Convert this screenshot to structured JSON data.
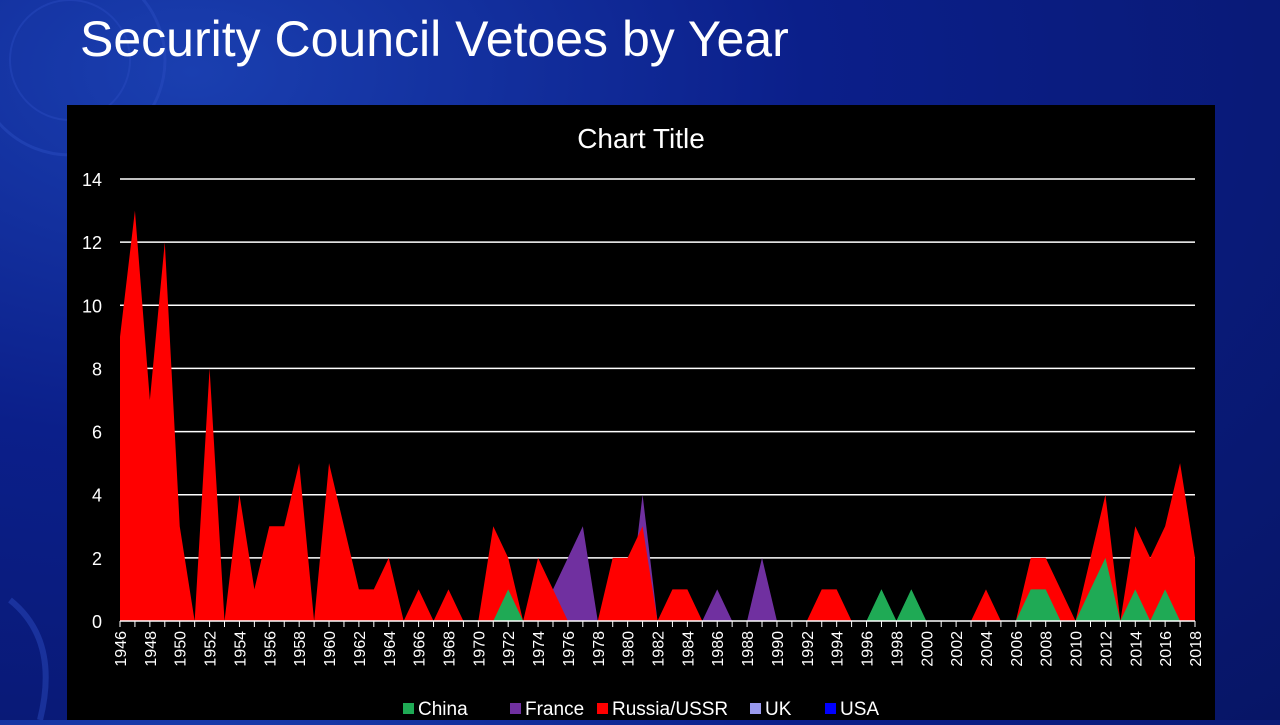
{
  "slide": {
    "title": "Security Council Vetoes by Year"
  },
  "chart_data": {
    "type": "area",
    "title": "Chart Title",
    "xlabel": "",
    "ylabel": "",
    "ylim": [
      0,
      14
    ],
    "yticks": [
      0,
      2,
      4,
      6,
      8,
      10,
      12,
      14
    ],
    "x": [
      1946,
      1947,
      1948,
      1949,
      1950,
      1951,
      1952,
      1953,
      1954,
      1955,
      1956,
      1957,
      1958,
      1959,
      1960,
      1961,
      1962,
      1963,
      1964,
      1965,
      1966,
      1967,
      1968,
      1969,
      1970,
      1971,
      1972,
      1973,
      1974,
      1975,
      1976,
      1977,
      1978,
      1979,
      1980,
      1981,
      1982,
      1983,
      1984,
      1985,
      1986,
      1987,
      1988,
      1989,
      1990,
      1991,
      1992,
      1993,
      1994,
      1995,
      1996,
      1997,
      1998,
      1999,
      2000,
      2001,
      2002,
      2003,
      2004,
      2005,
      2006,
      2007,
      2008,
      2009,
      2010,
      2011,
      2012,
      2013,
      2014,
      2015,
      2016,
      2017,
      2018
    ],
    "xticks": [
      1946,
      1948,
      1950,
      1952,
      1954,
      1956,
      1958,
      1960,
      1962,
      1964,
      1966,
      1968,
      1970,
      1972,
      1974,
      1976,
      1978,
      1980,
      1982,
      1984,
      1986,
      1988,
      1990,
      1992,
      1994,
      1996,
      1998,
      2000,
      2002,
      2004,
      2006,
      2008,
      2010,
      2012,
      2014,
      2016,
      2018
    ],
    "grid": true,
    "legend": "bottom",
    "series": [
      {
        "name": "China",
        "color": "#1faa55",
        "values": [
          0,
          0,
          0,
          0,
          0,
          0,
          0,
          0,
          0,
          0,
          0,
          0,
          0,
          0,
          0,
          0,
          0,
          0,
          0,
          0,
          0,
          0,
          0,
          0,
          0,
          0,
          1,
          0,
          0,
          0,
          0,
          0,
          0,
          0,
          0,
          0,
          0,
          0,
          0,
          0,
          0,
          0,
          0,
          0,
          0,
          0,
          0,
          0,
          0,
          0,
          0,
          1,
          0,
          1,
          0,
          0,
          0,
          0,
          0,
          0,
          0,
          1,
          1,
          0,
          0,
          1,
          2,
          0,
          1,
          0,
          1,
          0,
          0
        ]
      },
      {
        "name": "France",
        "color": "#7030a0",
        "values": [
          0,
          0,
          0,
          0,
          0,
          0,
          0,
          0,
          0,
          0,
          2,
          0,
          0,
          0,
          0,
          0,
          0,
          0,
          0,
          0,
          0,
          0,
          0,
          0,
          0,
          0,
          0,
          0,
          1,
          1,
          2,
          3,
          0,
          0,
          0,
          4,
          0,
          0,
          0,
          0,
          1,
          0,
          0,
          2,
          0,
          0,
          0,
          0,
          0,
          0,
          0,
          0,
          0,
          0,
          0,
          0,
          0,
          0,
          0,
          0,
          0,
          0,
          0,
          0,
          0,
          0,
          0,
          0,
          0,
          0,
          0,
          0,
          0
        ]
      },
      {
        "name": "Russia/USSR",
        "color": "#ff0000",
        "values": [
          9,
          13,
          7,
          12,
          3,
          0,
          8,
          0,
          4,
          1,
          3,
          3,
          5,
          0,
          5,
          3,
          1,
          1,
          2,
          0,
          1,
          0,
          1,
          0,
          0,
          3,
          2,
          0,
          2,
          1,
          0,
          0,
          0,
          2,
          2,
          3,
          0,
          1,
          1,
          0,
          0,
          0,
          0,
          0,
          0,
          0,
          0,
          1,
          1,
          0,
          0,
          0,
          0,
          0,
          0,
          0,
          0,
          0,
          1,
          0,
          0,
          2,
          2,
          1,
          0,
          2,
          4,
          0,
          3,
          2,
          3,
          5,
          2
        ]
      },
      {
        "name": "UK",
        "color": "#9999ee",
        "values": [
          0,
          0,
          0,
          0,
          0,
          0,
          0,
          0,
          0,
          0,
          0,
          0,
          0,
          0,
          0,
          0,
          0,
          0,
          0,
          0,
          0,
          0,
          0,
          0,
          0,
          0,
          0,
          0,
          0,
          0,
          0,
          0,
          0,
          0,
          0,
          0,
          0,
          0,
          0,
          0,
          0,
          0,
          0,
          0,
          0,
          0,
          0,
          0,
          0,
          0,
          0,
          0,
          0,
          0,
          0,
          0,
          0,
          0,
          0,
          0,
          0,
          0,
          0,
          0,
          0,
          0,
          0,
          0,
          0,
          0,
          0,
          0,
          0
        ]
      },
      {
        "name": "USA",
        "color": "#0000ff",
        "values": [
          0,
          0,
          0,
          0,
          0,
          0,
          0,
          0,
          0,
          0,
          0,
          0,
          0,
          0,
          0,
          0,
          0,
          0,
          0,
          0,
          0,
          0,
          0,
          0,
          0,
          0,
          0,
          0,
          0,
          0,
          0,
          0,
          0,
          0,
          0,
          0,
          0,
          0,
          0,
          0,
          0,
          0,
          0,
          0,
          0,
          0,
          0,
          0,
          0,
          0,
          0,
          0,
          0,
          0,
          0,
          0,
          0,
          0,
          0,
          0,
          0,
          0,
          0,
          0,
          0,
          0,
          0,
          0,
          0,
          0,
          0,
          0,
          0
        ]
      }
    ]
  }
}
